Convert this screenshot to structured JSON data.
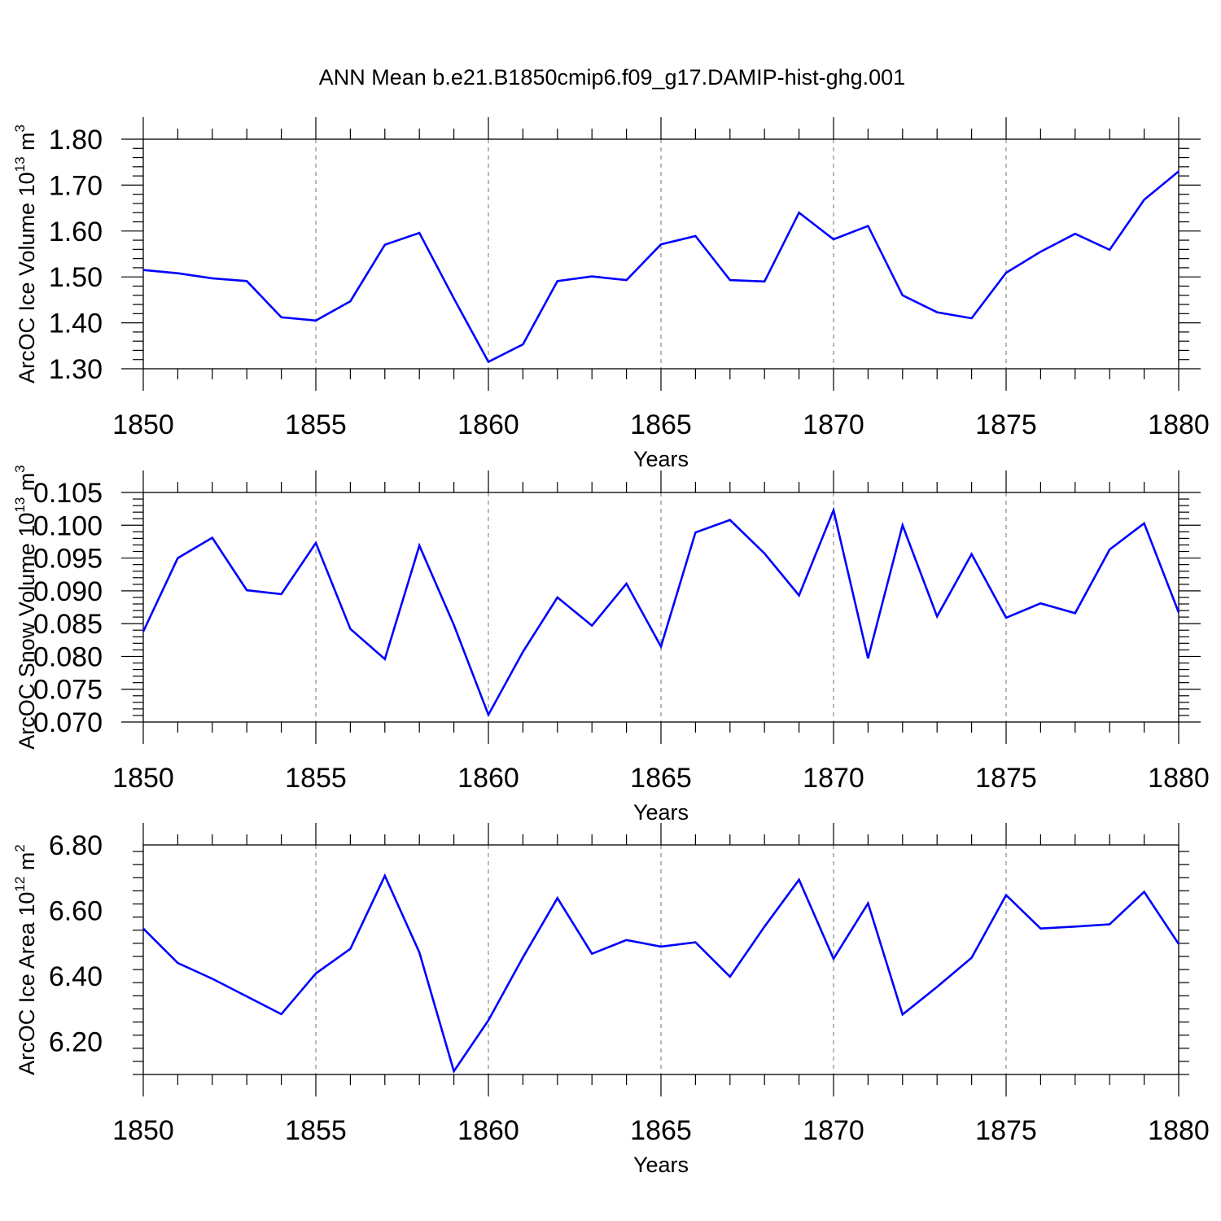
{
  "title": "ANN Mean b.e21.B1850cmip6.f09_g17.DAMIP-hist-ghg.001",
  "line_color": "#0000ff",
  "chart_data": [
    {
      "type": "line",
      "ylabel": {
        "base": "ArcOC Ice Volume 10",
        "exp": "13",
        "unit": " m",
        "unit_exp": "3"
      },
      "xlabel": "Years",
      "xlim": [
        1850,
        1880
      ],
      "ylim": [
        1.3,
        1.8
      ],
      "xticks": [
        "1850",
        "1855",
        "1860",
        "1865",
        "1870",
        "1875",
        "1880"
      ],
      "yticks": [
        "1.30",
        "1.40",
        "1.50",
        "1.60",
        "1.70",
        "1.80"
      ],
      "x": [
        1850,
        1851,
        1852,
        1853,
        1854,
        1855,
        1856,
        1857,
        1858,
        1859,
        1860,
        1861,
        1862,
        1863,
        1864,
        1865,
        1866,
        1867,
        1868,
        1869,
        1870,
        1871,
        1872,
        1873,
        1874,
        1875,
        1876,
        1877,
        1878,
        1879,
        1880
      ],
      "y": [
        1.515,
        1.508,
        1.497,
        1.491,
        1.412,
        1.405,
        1.447,
        1.57,
        1.596,
        1.453,
        1.315,
        1.353,
        1.491,
        1.501,
        1.493,
        1.571,
        1.589,
        1.493,
        1.49,
        1.64,
        1.582,
        1.611,
        1.46,
        1.423,
        1.41,
        1.509,
        1.555,
        1.594,
        1.559,
        1.668,
        1.73
      ]
    },
    {
      "type": "line",
      "ylabel": {
        "base": "ArcOC Snow Volume 10",
        "exp": "13",
        "unit": " m",
        "unit_exp": "3"
      },
      "xlabel": "Years",
      "xlim": [
        1850,
        1880
      ],
      "ylim": [
        0.07,
        0.105
      ],
      "xticks": [
        "1850",
        "1855",
        "1860",
        "1865",
        "1870",
        "1875",
        "1880"
      ],
      "yticks": [
        "0.070",
        "0.075",
        "0.080",
        "0.085",
        "0.090",
        "0.095",
        "0.100",
        "0.105"
      ],
      "x": [
        1850,
        1851,
        1852,
        1853,
        1854,
        1855,
        1856,
        1857,
        1858,
        1859,
        1860,
        1861,
        1862,
        1863,
        1864,
        1865,
        1866,
        1867,
        1868,
        1869,
        1870,
        1871,
        1872,
        1873,
        1874,
        1875,
        1876,
        1877,
        1878,
        1879,
        1880
      ],
      "y": [
        0.0838,
        0.095,
        0.0981,
        0.0901,
        0.0895,
        0.0973,
        0.0842,
        0.0796,
        0.0969,
        0.0848,
        0.0711,
        0.0807,
        0.089,
        0.0847,
        0.0911,
        0.0815,
        0.0989,
        0.1008,
        0.0957,
        0.0893,
        0.1023,
        0.0797,
        0.1,
        0.0861,
        0.0956,
        0.0859,
        0.0881,
        0.0866,
        0.0963,
        0.1003,
        0.0867
      ]
    },
    {
      "type": "line",
      "ylabel": {
        "base": "ArcOC Ice Area 10",
        "exp": "12",
        "unit": " m",
        "unit_exp": "2"
      },
      "xlabel": "Years",
      "xlim": [
        1850,
        1880
      ],
      "ylim": [
        6.1,
        6.8
      ],
      "xticks": [
        "1850",
        "1855",
        "1860",
        "1865",
        "1870",
        "1875",
        "1880"
      ],
      "yticks": [
        "6.20",
        "6.40",
        "6.60",
        "6.80"
      ],
      "x": [
        1850,
        1851,
        1852,
        1853,
        1854,
        1855,
        1856,
        1857,
        1858,
        1859,
        1860,
        1861,
        1862,
        1863,
        1864,
        1865,
        1866,
        1867,
        1868,
        1869,
        1870,
        1871,
        1872,
        1873,
        1874,
        1875,
        1876,
        1877,
        1878,
        1879,
        1880
      ],
      "y": [
        6.545,
        6.44,
        6.392,
        6.338,
        6.284,
        6.408,
        6.483,
        6.706,
        6.472,
        6.11,
        6.265,
        6.457,
        6.638,
        6.468,
        6.51,
        6.49,
        6.503,
        6.398,
        6.551,
        6.694,
        6.453,
        6.622,
        6.283,
        6.367,
        6.456,
        6.647,
        6.545,
        6.551,
        6.558,
        6.657,
        6.498
      ]
    }
  ]
}
